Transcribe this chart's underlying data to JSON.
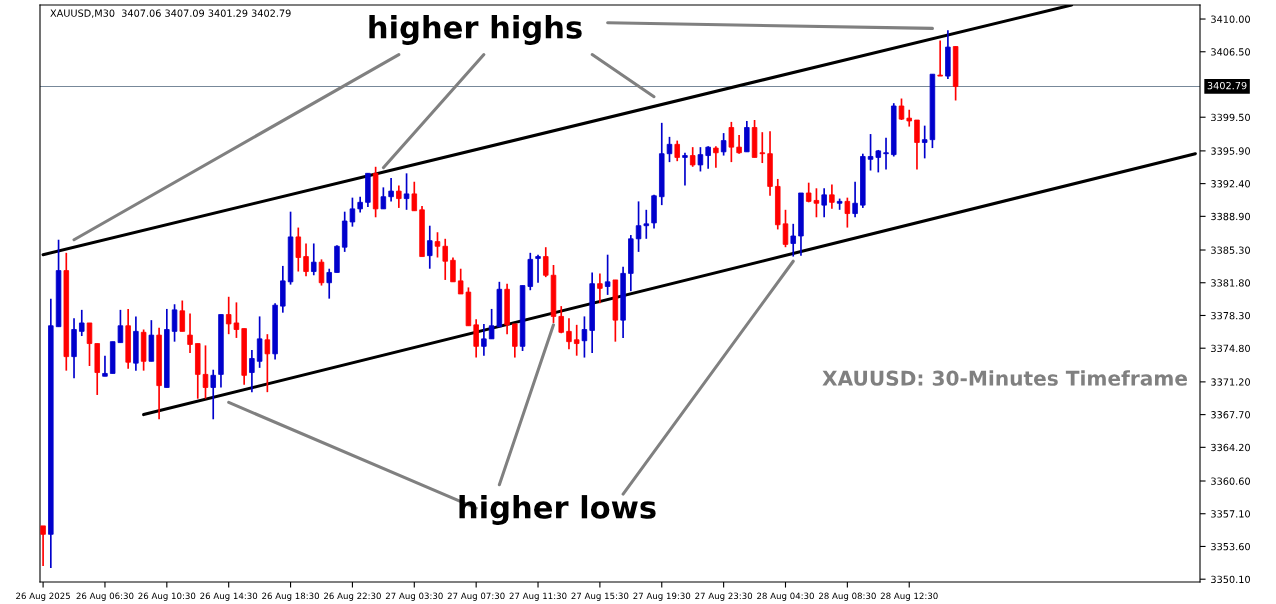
{
  "chart_data": {
    "type": "candlestick",
    "annotations": [
      "higher highs",
      "higher lows",
      "XAUUSD: 30-Minutes Timeframe",
      "XAUUSD,M30  3407.06 3407.09 3401.29 3402.79"
    ],
    "categories": [
      "26 Aug 2025",
      null,
      null,
      null,
      null,
      null,
      null,
      null,
      "26 Aug 06:30",
      null,
      null,
      null,
      null,
      null,
      null,
      null,
      "26 Aug 10:30",
      null,
      null,
      null,
      null,
      null,
      null,
      null,
      "26 Aug 14:30",
      null,
      null,
      null,
      null,
      null,
      null,
      null,
      "26 Aug 18:30",
      null,
      null,
      null,
      null,
      null,
      null,
      null,
      "26 Aug 22:30",
      null,
      null,
      null,
      null,
      null,
      null,
      null,
      "27 Aug 03:30",
      null,
      null,
      null,
      null,
      null,
      null,
      null,
      "27 Aug 07:30",
      null,
      null,
      null,
      null,
      null,
      null,
      null,
      "27 Aug 11:30",
      null,
      null,
      null,
      null,
      null,
      null,
      null,
      "27 Aug 15:30",
      null,
      null,
      null,
      null,
      null,
      null,
      null,
      "27 Aug 19:30",
      null,
      null,
      null,
      null,
      null,
      null,
      null,
      "27 Aug 23:30",
      null,
      null,
      null,
      null,
      null,
      null,
      null,
      "28 Aug 04:30",
      null,
      null,
      null,
      null,
      null,
      null,
      null,
      "28 Aug 08:30",
      null,
      null,
      null,
      null,
      null,
      null,
      null,
      "28 Aug 12:30",
      null,
      null,
      null,
      null,
      null,
      null,
      null,
      null,
      null,
      null,
      null,
      null,
      null,
      null,
      null,
      null,
      null,
      null,
      null,
      null,
      null,
      null,
      null,
      null,
      null,
      null,
      null,
      null,
      null,
      null,
      null,
      null,
      null,
      null,
      null,
      null,
      null
    ],
    "ohlc": [
      [
        3355.8,
        3355.8,
        3351.5,
        3354.9
      ],
      [
        3354.9,
        3380.1,
        3351.3,
        3377.2
      ],
      [
        3377.1,
        3386.4,
        3377.1,
        3383.1
      ],
      [
        3383.1,
        3385.0,
        3372.4,
        3373.9
      ],
      [
        3373.9,
        3378.0,
        3371.6,
        3376.8
      ],
      [
        3376.6,
        3378.9,
        3376.1,
        3377.5
      ],
      [
        3377.5,
        3377.5,
        3372.9,
        3375.3
      ],
      [
        3375.3,
        3375.3,
        3369.8,
        3372.2
      ],
      [
        3371.8,
        3374.0,
        3371.8,
        3372.1
      ],
      [
        3372.1,
        3375.5,
        3372.1,
        3375.5
      ],
      [
        3375.4,
        3378.9,
        3375.4,
        3377.2
      ],
      [
        3377.2,
        3379.0,
        3372.6,
        3373.3
      ],
      [
        3373.2,
        3378.2,
        3372.4,
        3376.6
      ],
      [
        3376.5,
        3376.8,
        3372.4,
        3373.4
      ],
      [
        3373.4,
        3377.8,
        3373.4,
        3376.2
      ],
      [
        3376.2,
        3377.0,
        3367.2,
        3370.8
      ],
      [
        3370.6,
        3379.0,
        3370.6,
        3376.8
      ],
      [
        3376.6,
        3379.5,
        3375.5,
        3378.9
      ],
      [
        3378.8,
        3379.9,
        3376.6,
        3376.6
      ],
      [
        3376.2,
        3378.5,
        3374.3,
        3375.2
      ],
      [
        3375.3,
        3375.3,
        3369.4,
        3372.0
      ],
      [
        3372.0,
        3375.1,
        3369.4,
        3370.6
      ],
      [
        3370.6,
        3372.5,
        3367.2,
        3371.9
      ],
      [
        3372.0,
        3378.4,
        3370.6,
        3378.4
      ],
      [
        3378.4,
        3380.3,
        3376.3,
        3377.4
      ],
      [
        3377.5,
        3379.7,
        3375.9,
        3376.8
      ],
      [
        3376.9,
        3376.9,
        3370.9,
        3371.9
      ],
      [
        3372.2,
        3374.6,
        3370.1,
        3373.7
      ],
      [
        3373.4,
        3378.2,
        3372.7,
        3375.8
      ],
      [
        3375.7,
        3376.3,
        3370.1,
        3374.2
      ],
      [
        3374.2,
        3379.6,
        3373.6,
        3379.4
      ],
      [
        3379.3,
        3383.6,
        3378.6,
        3382.0
      ],
      [
        3381.9,
        3389.4,
        3381.6,
        3386.7
      ],
      [
        3386.7,
        3387.7,
        3383.0,
        3384.5
      ],
      [
        3384.6,
        3386.0,
        3382.5,
        3383.0
      ],
      [
        3383.0,
        3386.0,
        3382.6,
        3384.0
      ],
      [
        3384.0,
        3384.3,
        3381.5,
        3381.8
      ],
      [
        3381.8,
        3383.3,
        3380.1,
        3382.9
      ],
      [
        3382.9,
        3385.8,
        3382.9,
        3385.7
      ],
      [
        3385.6,
        3389.4,
        3385.1,
        3388.4
      ],
      [
        3388.3,
        3390.9,
        3387.8,
        3389.7
      ],
      [
        3389.7,
        3391.0,
        3389.3,
        3390.4
      ],
      [
        3390.4,
        3393.5,
        3389.9,
        3393.5
      ],
      [
        3393.5,
        3394.2,
        3388.8,
        3389.7
      ],
      [
        3389.7,
        3392.0,
        3389.7,
        3391.0
      ],
      [
        3391.0,
        3393.0,
        3390.5,
        3391.6
      ],
      [
        3391.6,
        3392.2,
        3389.8,
        3390.8
      ],
      [
        3390.8,
        3393.5,
        3389.6,
        3391.3
      ],
      [
        3391.3,
        3392.6,
        3389.5,
        3389.5
      ],
      [
        3389.6,
        3390.0,
        3384.6,
        3384.6
      ],
      [
        3384.7,
        3387.9,
        3383.3,
        3386.3
      ],
      [
        3386.2,
        3387.2,
        3384.5,
        3385.7
      ],
      [
        3385.7,
        3386.5,
        3382.1,
        3384.1
      ],
      [
        3384.2,
        3384.5,
        3381.9,
        3381.9
      ],
      [
        3382.0,
        3383.3,
        3380.6,
        3380.6
      ],
      [
        3380.8,
        3381.3,
        3377.2,
        3377.2
      ],
      [
        3377.3,
        3377.9,
        3373.8,
        3375.0
      ],
      [
        3375.0,
        3377.4,
        3374.0,
        3375.8
      ],
      [
        3375.8,
        3379.0,
        3375.8,
        3377.2
      ],
      [
        3377.1,
        3381.9,
        3377.1,
        3381.1
      ],
      [
        3381.1,
        3381.7,
        3376.3,
        3377.3
      ],
      [
        3377.4,
        3377.4,
        3373.8,
        3375.0
      ],
      [
        3375.0,
        3381.5,
        3374.5,
        3381.5
      ],
      [
        3381.4,
        3385.0,
        3381.0,
        3384.3
      ],
      [
        3384.4,
        3384.8,
        3381.8,
        3384.6
      ],
      [
        3384.6,
        3385.6,
        3382.4,
        3382.6
      ],
      [
        3382.6,
        3383.7,
        3377.5,
        3378.2
      ],
      [
        3378.2,
        3379.3,
        3376.4,
        3376.5
      ],
      [
        3376.6,
        3378.0,
        3374.7,
        3375.5
      ],
      [
        3375.7,
        3377.3,
        3374.0,
        3375.3
      ],
      [
        3375.6,
        3378.2,
        3373.8,
        3376.8
      ],
      [
        3376.7,
        3382.9,
        3374.3,
        3381.7
      ],
      [
        3381.7,
        3382.8,
        3379.6,
        3381.2
      ],
      [
        3381.4,
        3384.8,
        3380.5,
        3381.9
      ],
      [
        3382.1,
        3382.1,
        3375.5,
        3377.8
      ],
      [
        3377.8,
        3383.5,
        3375.9,
        3382.8
      ],
      [
        3382.8,
        3386.9,
        3380.9,
        3386.5
      ],
      [
        3386.5,
        3390.5,
        3385.1,
        3387.9
      ],
      [
        3387.9,
        3389.6,
        3386.5,
        3388.1
      ],
      [
        3388.2,
        3391.2,
        3387.6,
        3391.1
      ],
      [
        3391.0,
        3398.9,
        3390.1,
        3395.6
      ],
      [
        3395.6,
        3397.4,
        3394.7,
        3396.6
      ],
      [
        3396.6,
        3397.0,
        3394.8,
        3395.2
      ],
      [
        3395.2,
        3395.7,
        3392.2,
        3395.4
      ],
      [
        3395.4,
        3396.3,
        3394.2,
        3394.4
      ],
      [
        3394.4,
        3396.3,
        3393.7,
        3395.5
      ],
      [
        3395.4,
        3396.4,
        3394.0,
        3396.3
      ],
      [
        3396.2,
        3396.4,
        3394.1,
        3395.7
      ],
      [
        3395.8,
        3397.8,
        3395.4,
        3397.0
      ],
      [
        3398.4,
        3399.0,
        3394.7,
        3396.3
      ],
      [
        3396.3,
        3397.6,
        3395.6,
        3395.7
      ],
      [
        3395.8,
        3399.1,
        3395.8,
        3398.4
      ],
      [
        3398.4,
        3399.2,
        3395.2,
        3395.2
      ],
      [
        3395.7,
        3397.9,
        3394.6,
        3395.6
      ],
      [
        3395.6,
        3398.0,
        3391.1,
        3392.1
      ],
      [
        3392.1,
        3392.9,
        3387.5,
        3388.0
      ],
      [
        3388.1,
        3389.6,
        3385.6,
        3385.9
      ],
      [
        3386.0,
        3388.1,
        3384.6,
        3386.8
      ],
      [
        3386.8,
        3391.4,
        3384.7,
        3391.4
      ],
      [
        3391.4,
        3392.5,
        3390.4,
        3390.5
      ],
      [
        3390.6,
        3391.9,
        3388.8,
        3390.3
      ],
      [
        3390.1,
        3391.9,
        3388.8,
        3391.2
      ],
      [
        3391.2,
        3392.3,
        3389.7,
        3390.4
      ],
      [
        3390.3,
        3390.8,
        3389.6,
        3390.5
      ],
      [
        3390.5,
        3390.9,
        3387.7,
        3389.2
      ],
      [
        3389.2,
        3392.6,
        3388.8,
        3390.3
      ],
      [
        3390.1,
        3395.6,
        3389.8,
        3395.3
      ],
      [
        3395.0,
        3397.7,
        3393.8,
        3395.3
      ],
      [
        3395.2,
        3396.0,
        3393.6,
        3395.9
      ],
      [
        3395.6,
        3397.3,
        3393.9,
        3395.7
      ],
      [
        3395.5,
        3401.0,
        3395.3,
        3400.7
      ],
      [
        3400.7,
        3401.5,
        3399.2,
        3399.3
      ],
      [
        3399.4,
        3400.3,
        3398.5,
        3399.1
      ],
      [
        3399.2,
        3399.2,
        3393.9,
        3396.8
      ],
      [
        3396.8,
        3398.6,
        3395.1,
        3397.1
      ],
      [
        3397.1,
        3404.1,
        3396.2,
        3404.1
      ],
      [
        3404.0,
        3407.7,
        3403.9,
        3403.9
      ],
      [
        3403.9,
        3408.8,
        3403.6,
        3407.0
      ],
      [
        3407.06,
        3407.09,
        3401.29,
        3402.79
      ],
      null,
      null,
      null,
      null,
      null,
      null,
      null,
      null,
      null,
      null,
      null,
      null,
      null,
      null,
      null,
      null,
      null,
      null,
      null,
      null,
      null,
      null,
      null,
      null,
      null,
      null,
      null,
      null,
      null,
      null,
      null
    ],
    "colors": [
      "#ff0000",
      "#0000cc",
      "#0000cc",
      "#ff0000",
      "#0000cc",
      "#0000cc",
      "#ff0000",
      "#ff0000",
      "#0000cc",
      "#0000cc",
      "#0000cc",
      "#ff0000",
      "#0000cc",
      "#ff0000",
      "#0000cc",
      "#ff0000",
      "#0000cc",
      "#0000cc",
      "#ff0000",
      "#ff0000",
      "#ff0000",
      "#ff0000",
      "#0000cc",
      "#0000cc",
      "#ff0000",
      "#ff0000",
      "#ff0000",
      "#0000cc",
      "#0000cc",
      "#ff0000",
      "#0000cc",
      "#0000cc",
      "#0000cc",
      "#ff0000",
      "#ff0000",
      "#0000cc",
      "#ff0000",
      "#0000cc",
      "#0000cc",
      "#0000cc",
      "#0000cc",
      "#0000cc",
      "#0000cc",
      "#ff0000",
      "#0000cc",
      "#0000cc",
      "#ff0000",
      "#0000cc",
      "#ff0000",
      "#ff0000",
      "#0000cc",
      "#ff0000",
      "#ff0000",
      "#ff0000",
      "#ff0000",
      "#ff0000",
      "#ff0000",
      "#0000cc",
      "#0000cc",
      "#0000cc",
      "#ff0000",
      "#ff0000",
      "#0000cc",
      "#0000cc",
      "#0000cc",
      "#ff0000",
      "#ff0000",
      "#ff0000",
      "#ff0000",
      "#ff0000",
      "#0000cc",
      "#0000cc",
      "#ff0000",
      "#0000cc",
      "#ff0000",
      "#0000cc",
      "#0000cc",
      "#0000cc",
      "#0000cc",
      "#0000cc",
      "#0000cc",
      "#0000cc",
      "#ff0000",
      "#0000cc",
      "#ff0000",
      "#0000cc",
      "#0000cc",
      "#ff0000",
      "#0000cc",
      "#ff0000",
      "#ff0000",
      "#0000cc",
      "#ff0000",
      "#ff0000",
      "#ff0000",
      "#ff0000",
      "#ff0000",
      "#0000cc",
      "#0000cc",
      "#ff0000",
      "#ff0000",
      "#0000cc",
      "#ff0000",
      "#0000cc",
      "#ff0000",
      "#0000cc",
      "#0000cc",
      "#0000cc",
      "#0000cc",
      "#0000cc",
      "#0000cc",
      "#ff0000",
      "#ff0000",
      "#ff0000",
      "#0000cc",
      "#0000cc",
      "#ff0000",
      "#0000cc",
      "#ff0000",
      null,
      null,
      null,
      null,
      null,
      null,
      null,
      null,
      null,
      null,
      null,
      null,
      null,
      null,
      null,
      null,
      null,
      null,
      null,
      null,
      null,
      null,
      null,
      null,
      null,
      null,
      null,
      null,
      null,
      null,
      null
    ],
    "series": [
      {
        "type": "line",
        "color": "#000000",
        "values": [
          3384.8,
          null,
          null,
          null,
          null,
          null,
          null,
          null,
          null,
          null,
          null,
          null,
          null,
          null,
          null,
          null,
          null,
          null,
          null,
          null,
          null,
          null,
          null,
          null,
          null,
          null,
          null,
          null,
          null,
          null,
          null,
          null,
          null,
          null,
          null,
          null,
          null,
          null,
          null,
          null,
          null,
          null,
          null,
          null,
          null,
          null,
          null,
          null,
          null,
          null,
          null,
          null,
          null,
          null,
          null,
          null,
          null,
          null,
          null,
          null,
          null,
          null,
          null,
          null,
          null,
          null,
          null,
          null,
          null,
          null,
          null,
          null,
          null,
          null,
          null,
          null,
          null,
          null,
          null,
          null,
          null,
          null,
          null,
          null,
          null,
          null,
          null,
          null,
          null,
          null,
          null,
          null,
          null,
          null,
          null,
          null,
          null,
          null,
          null,
          null,
          null,
          null,
          null,
          null,
          null,
          null,
          null,
          null,
          null,
          null,
          null,
          null,
          null,
          null,
          null,
          null,
          null,
          null,
          null,
          null,
          null,
          null,
          null,
          null,
          null,
          null,
          null,
          null,
          null,
          null,
          null,
          null,
          null,
          3411.5,
          null,
          null,
          null,
          null,
          null,
          null,
          null,
          null,
          null,
          null,
          null,
          null,
          null,
          null,
          null,
          null
        ]
      },
      {
        "type": "line",
        "color": "#000000",
        "values": [
          null,
          null,
          null,
          null,
          null,
          null,
          null,
          null,
          null,
          null,
          null,
          null,
          null,
          3367.7,
          null,
          null,
          null,
          null,
          null,
          null,
          null,
          null,
          null,
          null,
          null,
          null,
          null,
          null,
          null,
          null,
          null,
          null,
          null,
          null,
          null,
          null,
          null,
          null,
          null,
          null,
          null,
          null,
          null,
          null,
          null,
          null,
          null,
          null,
          null,
          null,
          null,
          null,
          null,
          null,
          null,
          null,
          null,
          null,
          null,
          null,
          null,
          null,
          null,
          null,
          null,
          null,
          null,
          null,
          null,
          null,
          null,
          null,
          null,
          null,
          null,
          null,
          null,
          null,
          null,
          null,
          null,
          null,
          null,
          null,
          null,
          null,
          null,
          null,
          null,
          null,
          null,
          null,
          null,
          null,
          null,
          null,
          null,
          null,
          null,
          null,
          null,
          null,
          null,
          null,
          null,
          null,
          null,
          null,
          null,
          null,
          null,
          null,
          null,
          null,
          null,
          null,
          null,
          null,
          null,
          null,
          null,
          null,
          null,
          null,
          null,
          null,
          null,
          null,
          null,
          null,
          null,
          null,
          null,
          null,
          null,
          null,
          null,
          null,
          null,
          null,
          null,
          null,
          null,
          null,
          null,
          null,
          null,
          null,
          null,
          3395.6
        ]
      },
      {
        "type": "line",
        "color": "#808080",
        "values": [
          null,
          null,
          null,
          null,
          3386.4,
          null,
          null,
          null,
          null,
          null,
          null,
          null,
          null,
          null,
          null,
          null,
          null,
          null,
          null,
          null,
          null,
          null,
          null,
          null,
          null,
          null,
          null,
          null,
          null,
          null,
          null,
          null,
          null,
          null,
          null,
          null,
          null,
          null,
          null,
          null,
          null,
          null,
          null,
          null,
          null,
          null,
          3406.2,
          null,
          null,
          null,
          null,
          null,
          null,
          null,
          null,
          null,
          null,
          null,
          null,
          null,
          null,
          null,
          null,
          null,
          null,
          null,
          null,
          null,
          null,
          null,
          null,
          null,
          null,
          null,
          null,
          null,
          null,
          null,
          null,
          null,
          null,
          null,
          null,
          null,
          null,
          null,
          null,
          null,
          null,
          null,
          null,
          null,
          null,
          null,
          null,
          null,
          null,
          null,
          null,
          null,
          null,
          null,
          null,
          null,
          null,
          null,
          null,
          null,
          null,
          null,
          null,
          null,
          null,
          null,
          null,
          null,
          null,
          null,
          null,
          null,
          null,
          null,
          null,
          null,
          null,
          null,
          null,
          null,
          null,
          null,
          null,
          null,
          null,
          null,
          null,
          null,
          null,
          null,
          null,
          null,
          null,
          null,
          null,
          null,
          null,
          null,
          null,
          null,
          null,
          null
        ]
      },
      {
        "type": "line",
        "color": "#808080",
        "values": [
          null,
          null,
          null,
          null,
          null,
          null,
          null,
          null,
          null,
          null,
          null,
          null,
          null,
          null,
          null,
          null,
          null,
          null,
          null,
          null,
          null,
          null,
          null,
          null,
          null,
          null,
          null,
          null,
          null,
          null,
          null,
          null,
          null,
          null,
          null,
          null,
          null,
          null,
          null,
          null,
          null,
          null,
          null,
          null,
          3394.1,
          null,
          null,
          null,
          null,
          null,
          null,
          null,
          null,
          null,
          null,
          null,
          null,
          3406.2,
          null,
          null,
          null,
          null,
          null,
          null,
          null,
          null,
          null,
          null,
          null,
          null,
          null,
          null,
          null,
          null,
          null,
          null,
          null,
          null,
          null,
          null,
          null,
          null,
          null,
          null,
          null,
          null,
          null,
          null,
          null,
          null,
          null,
          null,
          null,
          null,
          null,
          null,
          null,
          null,
          null,
          null,
          null,
          null,
          null,
          null,
          null,
          null,
          null,
          null,
          null,
          null,
          null,
          null,
          null,
          null,
          null,
          null,
          null,
          null,
          null,
          null,
          null,
          null,
          null,
          null,
          null,
          null,
          null,
          null,
          null,
          null,
          null,
          null,
          null,
          null,
          null,
          null,
          null,
          null,
          null,
          null,
          null,
          null,
          null,
          null,
          null,
          null,
          null,
          null,
          null,
          null
        ]
      },
      {
        "type": "line",
        "color": "#808080",
        "values": [
          null,
          null,
          null,
          null,
          null,
          null,
          null,
          null,
          null,
          null,
          null,
          null,
          null,
          null,
          null,
          null,
          null,
          null,
          null,
          null,
          null,
          null,
          null,
          null,
          null,
          null,
          null,
          null,
          null,
          null,
          null,
          null,
          null,
          null,
          null,
          null,
          null,
          null,
          null,
          null,
          null,
          null,
          null,
          null,
          null,
          null,
          null,
          null,
          null,
          null,
          null,
          null,
          null,
          null,
          null,
          null,
          null,
          null,
          null,
          null,
          null,
          null,
          null,
          null,
          null,
          null,
          null,
          null,
          null,
          null,
          null,
          3406.2,
          null,
          null,
          null,
          null,
          null,
          null,
          null,
          3401.7,
          null,
          null,
          null,
          null,
          null,
          null,
          null,
          null,
          null,
          null,
          null,
          null,
          null,
          null,
          null,
          null,
          null,
          null,
          null,
          null,
          null,
          null,
          null,
          null,
          null,
          null,
          null,
          null,
          null,
          null,
          null,
          null,
          null,
          null,
          null,
          null,
          null,
          null,
          null,
          null,
          null,
          null,
          null,
          null,
          null,
          null,
          null,
          null,
          null,
          null,
          null,
          null,
          null,
          null,
          null,
          null,
          null,
          null,
          null,
          null,
          null,
          null,
          null,
          null,
          null,
          null,
          null,
          null,
          null,
          null
        ]
      },
      {
        "type": "line",
        "color": "#808080",
        "values": [
          null,
          null,
          null,
          null,
          null,
          null,
          null,
          null,
          null,
          null,
          null,
          null,
          null,
          null,
          null,
          null,
          null,
          null,
          null,
          null,
          null,
          null,
          null,
          null,
          null,
          null,
          null,
          null,
          null,
          null,
          null,
          null,
          null,
          null,
          null,
          null,
          null,
          null,
          null,
          null,
          null,
          null,
          null,
          null,
          null,
          null,
          null,
          null,
          null,
          null,
          null,
          null,
          null,
          null,
          null,
          null,
          null,
          null,
          null,
          null,
          null,
          null,
          null,
          null,
          null,
          null,
          null,
          null,
          null,
          null,
          null,
          null,
          null,
          3409.6,
          null,
          null,
          null,
          null,
          null,
          null,
          null,
          null,
          null,
          null,
          null,
          null,
          null,
          null,
          null,
          null,
          null,
          null,
          null,
          null,
          null,
          null,
          null,
          null,
          null,
          null,
          null,
          null,
          null,
          null,
          null,
          null,
          null,
          null,
          null,
          null,
          null,
          null,
          null,
          null,
          null,
          3409.0,
          null,
          null,
          null,
          null,
          null,
          null,
          null,
          null,
          null,
          null,
          null,
          null,
          null,
          null,
          null,
          null,
          null,
          null,
          null,
          null,
          null,
          null,
          null,
          null,
          null,
          null,
          null,
          null,
          null,
          null,
          null,
          null,
          null,
          null
        ]
      },
      {
        "type": "line",
        "color": "#808080",
        "values": [
          null,
          null,
          null,
          null,
          null,
          null,
          null,
          null,
          null,
          null,
          null,
          null,
          null,
          null,
          null,
          null,
          null,
          null,
          null,
          null,
          null,
          null,
          null,
          null,
          3369.0,
          null,
          null,
          null,
          null,
          null,
          null,
          null,
          null,
          null,
          null,
          null,
          null,
          null,
          null,
          null,
          null,
          null,
          null,
          null,
          null,
          null,
          null,
          null,
          null,
          null,
          null,
          null,
          null,
          null,
          null,
          null,
          3357.7,
          null,
          null,
          null,
          null,
          null,
          null,
          null,
          null,
          null,
          null,
          null,
          null,
          null,
          null,
          null,
          null,
          null,
          null,
          null,
          null,
          null,
          null,
          null,
          null,
          null,
          null,
          null,
          null,
          null,
          null,
          null,
          null,
          null,
          null,
          null,
          null,
          null,
          null,
          null,
          null,
          null,
          null,
          null,
          null,
          null,
          null,
          null,
          null,
          null,
          null,
          null,
          null,
          null,
          null,
          null,
          null,
          null,
          null,
          null,
          null,
          null,
          null,
          null,
          null,
          null,
          null,
          null,
          null,
          null,
          null,
          null,
          null,
          null,
          null,
          null,
          null,
          null,
          null,
          null,
          null,
          null,
          null,
          null,
          null,
          null,
          null,
          null,
          null,
          null,
          null,
          null,
          null,
          null
        ]
      },
      {
        "type": "line",
        "color": "#808080",
        "values": [
          null,
          null,
          null,
          null,
          null,
          null,
          null,
          null,
          null,
          null,
          null,
          null,
          null,
          null,
          null,
          null,
          null,
          null,
          null,
          null,
          null,
          null,
          null,
          null,
          null,
          null,
          null,
          null,
          null,
          null,
          null,
          null,
          null,
          null,
          null,
          null,
          null,
          null,
          null,
          null,
          null,
          null,
          null,
          null,
          null,
          null,
          null,
          null,
          null,
          null,
          null,
          null,
          null,
          null,
          null,
          null,
          null,
          null,
          null,
          3360.2,
          null,
          null,
          null,
          null,
          null,
          null,
          3377.3,
          null,
          null,
          null,
          null,
          null,
          null,
          null,
          null,
          null,
          null,
          null,
          null,
          null,
          null,
          null,
          null,
          null,
          null,
          null,
          null,
          null,
          null,
          null,
          null,
          null,
          null,
          null,
          null,
          null,
          null,
          null,
          null,
          null,
          null,
          null,
          null,
          null,
          null,
          null,
          null,
          null,
          null,
          null,
          null,
          null,
          null,
          null,
          null,
          null,
          null,
          null,
          null,
          null,
          null,
          null,
          null,
          null,
          null,
          null,
          null,
          null,
          null,
          null,
          null,
          null,
          null,
          null,
          null,
          null,
          null,
          null,
          null,
          null,
          null,
          null,
          null,
          null,
          null,
          null,
          null,
          null,
          null,
          null
        ]
      },
      {
        "type": "line",
        "color": "#808080",
        "values": [
          null,
          null,
          null,
          null,
          null,
          null,
          null,
          null,
          null,
          null,
          null,
          null,
          null,
          null,
          null,
          null,
          null,
          null,
          null,
          null,
          null,
          null,
          null,
          null,
          null,
          null,
          null,
          null,
          null,
          null,
          null,
          null,
          null,
          null,
          null,
          null,
          null,
          null,
          null,
          null,
          null,
          null,
          null,
          null,
          null,
          null,
          null,
          null,
          null,
          null,
          null,
          null,
          null,
          null,
          null,
          null,
          null,
          null,
          null,
          null,
          null,
          null,
          null,
          null,
          null,
          null,
          null,
          null,
          null,
          null,
          null,
          null,
          null,
          null,
          null,
          3359.2,
          null,
          null,
          null,
          null,
          null,
          null,
          null,
          null,
          null,
          null,
          null,
          null,
          null,
          null,
          null,
          null,
          null,
          null,
          null,
          null,
          null,
          3384.1,
          null,
          null,
          null,
          null,
          null,
          null,
          null,
          null,
          null,
          null,
          null,
          null,
          null,
          null,
          null,
          null,
          null,
          null,
          null,
          null,
          null,
          null,
          null,
          null,
          null,
          null,
          null,
          null,
          null,
          null,
          null,
          null,
          null,
          null,
          null,
          null,
          null,
          null,
          null,
          null,
          null,
          null,
          null,
          null,
          null,
          null,
          null,
          null,
          null,
          null,
          null,
          null
        ]
      }
    ],
    "ref_lines": [
      {
        "axis": "y",
        "value": 3402.79,
        "label": "3402.79",
        "color": "#778899"
      }
    ],
    "ylim": [
      3349.8,
      3411.5
    ],
    "yticks": [
      {
        "value": 3350.1,
        "label": "3350.10"
      },
      {
        "value": 3353.6,
        "label": "3353.60"
      },
      {
        "value": 3357.1,
        "label": "3357.10"
      },
      {
        "value": 3360.6,
        "label": "3360.60"
      },
      {
        "value": 3364.2,
        "label": "3364.20"
      },
      {
        "value": 3367.7,
        "label": "3367.70"
      },
      {
        "value": 3371.2,
        "label": "3371.20"
      },
      {
        "value": 3374.8,
        "label": "3374.80"
      },
      {
        "value": 3378.3,
        "label": "3378.30"
      },
      {
        "value": 3381.8,
        "label": "3381.80"
      },
      {
        "value": 3385.3,
        "label": "3385.30"
      },
      {
        "value": 3388.9,
        "label": "3388.90"
      },
      {
        "value": 3392.4,
        "label": "3392.40"
      },
      {
        "value": 3395.9,
        "label": "3395.90"
      },
      {
        "value": 3399.5,
        "label": "3399.50"
      },
      {
        "value": 3406.5,
        "label": "3406.50"
      },
      {
        "value": 3410.0,
        "label": "3410.00"
      }
    ],
    "grid": false
  }
}
